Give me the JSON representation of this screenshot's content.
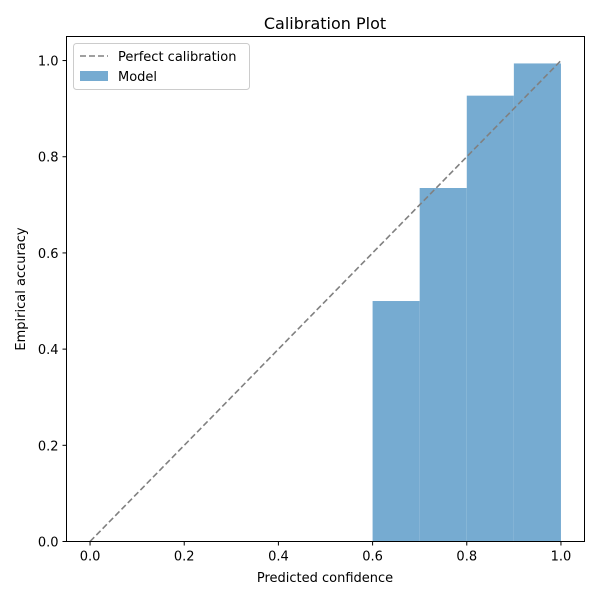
{
  "chart_data": {
    "type": "bar",
    "title": "Calibration Plot",
    "xlabel": "Predicted confidence",
    "ylabel": "Empirical accuracy",
    "xlim": [
      -0.05,
      1.05
    ],
    "ylim": [
      0.0,
      1.05
    ],
    "x_ticks": [
      "0.0",
      "0.2",
      "0.4",
      "0.6",
      "0.8",
      "1.0"
    ],
    "y_ticks": [
      "0.0",
      "0.2",
      "0.4",
      "0.6",
      "0.8",
      "1.0"
    ],
    "grid": false,
    "legend_position": "upper-left",
    "series": [
      {
        "name": "Perfect calibration",
        "kind": "line",
        "style": "dashed",
        "color": "#808080",
        "x": [
          0.0,
          1.0
        ],
        "y": [
          0.0,
          1.0
        ]
      },
      {
        "name": "Model",
        "kind": "bar",
        "color": "#76abd1",
        "bins": [
          {
            "x_start": 0.6,
            "x_end": 0.7,
            "value": 0.5
          },
          {
            "x_start": 0.7,
            "x_end": 0.8,
            "value": 0.735
          },
          {
            "x_start": 0.8,
            "x_end": 0.9,
            "value": 0.927
          },
          {
            "x_start": 0.9,
            "x_end": 1.0,
            "value": 0.994
          }
        ]
      }
    ]
  }
}
